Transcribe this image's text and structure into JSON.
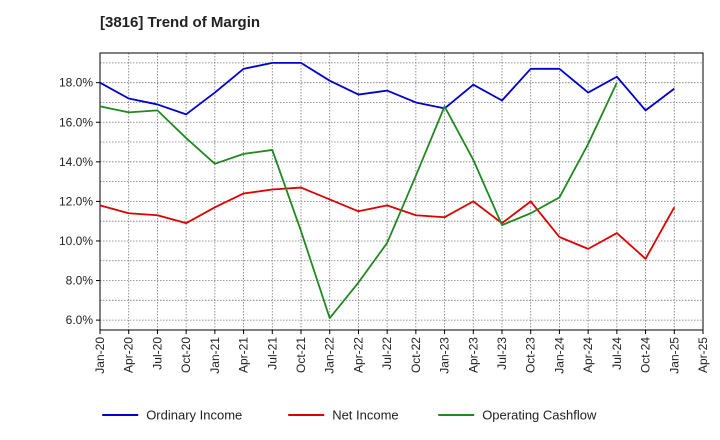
{
  "chart_data": {
    "type": "line",
    "title": "[3816]  Trend of Margin",
    "xlabel": "",
    "ylabel": "",
    "x": [
      "Jan-20",
      "Apr-20",
      "Jul-20",
      "Oct-20",
      "Jan-21",
      "Apr-21",
      "Jul-21",
      "Oct-21",
      "Jan-22",
      "Apr-22",
      "Jul-22",
      "Oct-22",
      "Jan-23",
      "Apr-23",
      "Jul-23",
      "Oct-23",
      "Jan-24",
      "Apr-24",
      "Jul-24",
      "Oct-24",
      "Jan-25",
      "Apr-25"
    ],
    "x_ticks": [
      "Jan-20",
      "Apr-20",
      "Jul-20",
      "Oct-20",
      "Jan-21",
      "Apr-21",
      "Jul-21",
      "Oct-21",
      "Jan-22",
      "Apr-22",
      "Jul-22",
      "Oct-22",
      "Jan-23",
      "Apr-23",
      "Jul-23",
      "Oct-23",
      "Jan-24",
      "Apr-24",
      "Jul-24",
      "Oct-24",
      "Jan-25",
      "Apr-25"
    ],
    "y_ticks": [
      "6.0%",
      "8.0%",
      "10.0%",
      "12.0%",
      "14.0%",
      "16.0%",
      "18.0%"
    ],
    "y_tick_values": [
      6,
      8,
      10,
      12,
      14,
      16,
      18
    ],
    "ylim": [
      5.5,
      19.5
    ],
    "grid": true,
    "legend": "bottom",
    "series": [
      {
        "name": "Ordinary Income",
        "color": "#0000cc",
        "values": [
          18.0,
          17.2,
          16.9,
          16.4,
          17.5,
          18.7,
          19.0,
          19.0,
          18.1,
          17.4,
          17.6,
          17.0,
          16.7,
          17.9,
          17.1,
          18.7,
          18.7,
          17.5,
          18.3,
          16.6,
          17.7,
          null
        ]
      },
      {
        "name": "Net Income",
        "color": "#dd0000",
        "values": [
          11.8,
          11.4,
          11.3,
          10.9,
          11.7,
          12.4,
          12.6,
          12.7,
          12.1,
          11.5,
          11.8,
          11.3,
          11.2,
          12.0,
          10.9,
          12.0,
          10.2,
          9.6,
          10.4,
          9.1,
          11.7,
          null
        ]
      },
      {
        "name": "Operating Cashflow",
        "color": "#228822",
        "values": [
          16.8,
          16.5,
          16.6,
          15.2,
          13.9,
          14.4,
          14.6,
          10.5,
          6.1,
          7.9,
          9.9,
          13.3,
          16.8,
          14.1,
          10.8,
          11.4,
          12.2,
          14.9,
          18.0,
          null,
          null,
          null
        ]
      }
    ]
  }
}
